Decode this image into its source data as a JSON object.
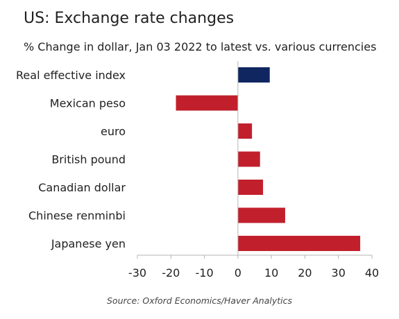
{
  "chart_data": {
    "type": "bar",
    "orientation": "horizontal",
    "title": "US: Exchange rate changes",
    "subtitle": "% Change in dollar, Jan 03 2022 to latest vs. various currencies",
    "source": "Source: Oxford Economics/Haver Analytics",
    "categories": [
      "Real effective index",
      "Mexican peso",
      "euro",
      "British pound",
      "Canadian dollar",
      "Chinese renminbi",
      "Japanese yen"
    ],
    "values": [
      9.5,
      -18.5,
      4.2,
      6.6,
      7.5,
      14.1,
      36.5
    ],
    "bar_colors": [
      "#0f2660",
      "#c21f2c",
      "#c21f2c",
      "#c21f2c",
      "#c21f2c",
      "#c21f2c",
      "#c21f2c"
    ],
    "xlim": [
      -30,
      40
    ],
    "xticks": [
      -30,
      -20,
      -10,
      0,
      10,
      20,
      30,
      40
    ],
    "xlabel": "",
    "ylabel": "",
    "grid": false,
    "legend": "none"
  }
}
